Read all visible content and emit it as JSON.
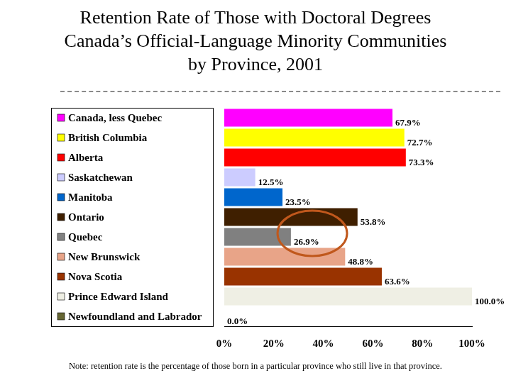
{
  "chart_data": {
    "type": "bar",
    "orientation": "horizontal",
    "title": "Retention Rate of Those with Doctoral Degrees\nCanada’s Official-Language Minority Communities\nby Province, 2001",
    "annotation": "Note:  retention rate is the percentage of those born in a particular province who still live in that province.",
    "categories": [
      "Canada, less Quebec",
      "British Columbia",
      "Alberta",
      "Saskatchewan",
      "Manitoba",
      "Ontario",
      "Quebec",
      "New Brunswick",
      "Nova Scotia",
      "Prince Edward Island",
      "Newfoundland and Labrador"
    ],
    "values": [
      67.9,
      72.7,
      73.3,
      12.5,
      23.5,
      53.8,
      26.9,
      48.8,
      63.6,
      100.0,
      0.0
    ],
    "value_labels": [
      "67.9%",
      "72.7%",
      "73.3%",
      "12.5%",
      "23.5%",
      "53.8%",
      "26.9%",
      "48.8%",
      "63.6%",
      "100.0%",
      "0.0%"
    ],
    "colors": [
      "#ff00ff",
      "#ffff00",
      "#ff0000",
      "#ccccff",
      "#0066cc",
      "#3f1f00",
      "#808080",
      "#e8a488",
      "#993300",
      "#efefe4",
      "#666633"
    ],
    "xlim": [
      0,
      100
    ],
    "xticks": [
      {
        "value": 0,
        "label": "0%"
      },
      {
        "value": 20,
        "label": "20%"
      },
      {
        "value": 40,
        "label": "40%"
      },
      {
        "value": 60,
        "label": "60%"
      },
      {
        "value": 80,
        "label": "80%"
      },
      {
        "value": 100,
        "label": "100%"
      }
    ],
    "grid": false,
    "data_labels": true
  }
}
